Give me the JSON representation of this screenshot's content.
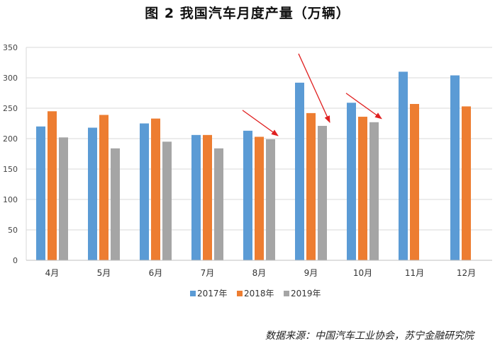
{
  "chart_data": {
    "type": "bar",
    "title": "图 2    我国汽车月度产量（万辆）",
    "categories": [
      "4月",
      "5月",
      "6月",
      "7月",
      "8月",
      "9月",
      "10月",
      "11月",
      "12月"
    ],
    "series": [
      {
        "name": "2017年",
        "color": "#5B9BD5",
        "values": [
          220,
          218,
          225,
          206,
          213,
          292,
          259,
          310,
          304
        ]
      },
      {
        "name": "2018年",
        "color": "#ED7D31",
        "values": [
          245,
          239,
          233,
          206,
          203,
          242,
          236,
          257,
          253
        ]
      },
      {
        "name": "2019年",
        "color": "#A5A5A5",
        "values": [
          202,
          184,
          195,
          184,
          199,
          221,
          227,
          null,
          null
        ]
      }
    ],
    "yticks": [
      0,
      50,
      100,
      150,
      200,
      250,
      300,
      350
    ],
    "ylim": [
      0,
      350
    ],
    "grid": true,
    "legend": "bottom",
    "annotations": [
      {
        "type": "red-arrow",
        "category": "8月"
      },
      {
        "type": "red-arrow",
        "category": "9月"
      },
      {
        "type": "red-arrow",
        "category": "10月"
      }
    ]
  },
  "source": "数据来源：中国汽车工业协会，苏宁金融研究院"
}
